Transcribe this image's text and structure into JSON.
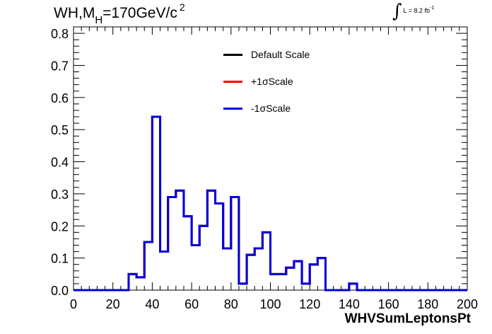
{
  "header": {
    "title_main": "WH,M",
    "title_sub": "H",
    "title_rest": "=170GeV/c",
    "title_sup": "2",
    "lumi_text": "L = 8.2 fb",
    "lumi_sup": "-1"
  },
  "legend": {
    "items": [
      {
        "label": "Default Scale",
        "color": "#000000"
      },
      {
        "label": "+1σScale",
        "color": "#ff0000"
      },
      {
        "label": "-1σScale",
        "color": "#0000dd"
      }
    ]
  },
  "chart_data": {
    "type": "line",
    "title": "WH,M_H=170GeV/c^2",
    "xlabel": "WHVSumLeptonsPt",
    "ylabel": "",
    "xlim": [
      0,
      200
    ],
    "ylim": [
      0,
      0.82
    ],
    "x_ticks": [
      "0",
      "20",
      "40",
      "60",
      "80",
      "100",
      "120",
      "140",
      "160",
      "180",
      "200"
    ],
    "y_ticks": [
      "0.0",
      "0.1",
      "0.2",
      "0.3",
      "0.4",
      "0.5",
      "0.6",
      "0.7",
      "0.8"
    ],
    "x_tick_values": [
      0,
      20,
      40,
      60,
      80,
      100,
      120,
      140,
      160,
      180,
      200
    ],
    "y_tick_values": [
      0,
      0.1,
      0.2,
      0.3,
      0.4,
      0.5,
      0.6,
      0.7,
      0.8
    ],
    "bin_edges": [
      0,
      4,
      8,
      12,
      16,
      20,
      24,
      28,
      32,
      36,
      40,
      44,
      48,
      52,
      56,
      60,
      64,
      68,
      72,
      76,
      80,
      84,
      88,
      92,
      96,
      100,
      104,
      108,
      112,
      116,
      120,
      124,
      128,
      132,
      136,
      140,
      144,
      148,
      152,
      156,
      160,
      164,
      168,
      172,
      176,
      180,
      184,
      188,
      192,
      196,
      200
    ],
    "series": [
      {
        "name": "Default Scale",
        "color": "#000000",
        "values": [
          0,
          0,
          0,
          0,
          0,
          0,
          0,
          0.05,
          0.04,
          0.15,
          0.54,
          0.12,
          0.29,
          0.31,
          0.23,
          0.14,
          0.2,
          0.31,
          0.27,
          0.13,
          0.29,
          0.02,
          0.11,
          0.13,
          0.18,
          0.05,
          0.05,
          0.07,
          0.09,
          0.02,
          0.08,
          0.1,
          0,
          0,
          0,
          0.02,
          0,
          0,
          0,
          0,
          0,
          0,
          0,
          0,
          0,
          0,
          0,
          0,
          0,
          0
        ]
      },
      {
        "name": "+1σScale",
        "color": "#ff0000",
        "values": [
          0,
          0,
          0,
          0,
          0,
          0,
          0,
          0.05,
          0.04,
          0.15,
          0.54,
          0.12,
          0.29,
          0.31,
          0.23,
          0.14,
          0.2,
          0.31,
          0.27,
          0.13,
          0.29,
          0.02,
          0.11,
          0.13,
          0.18,
          0.05,
          0.05,
          0.07,
          0.09,
          0.02,
          0.08,
          0.1,
          0,
          0,
          0,
          0.02,
          0,
          0,
          0,
          0,
          0,
          0,
          0,
          0,
          0,
          0,
          0,
          0,
          0,
          0
        ]
      },
      {
        "name": "-1σScale",
        "color": "#0000dd",
        "values": [
          0,
          0,
          0,
          0,
          0,
          0,
          0,
          0.05,
          0.04,
          0.15,
          0.54,
          0.12,
          0.29,
          0.31,
          0.23,
          0.14,
          0.2,
          0.31,
          0.27,
          0.13,
          0.29,
          0.02,
          0.11,
          0.13,
          0.18,
          0.05,
          0.05,
          0.07,
          0.09,
          0.02,
          0.08,
          0.1,
          0,
          0,
          0,
          0.02,
          0,
          0,
          0,
          0,
          0,
          0,
          0,
          0,
          0,
          0,
          0,
          0,
          0,
          0
        ]
      }
    ]
  }
}
